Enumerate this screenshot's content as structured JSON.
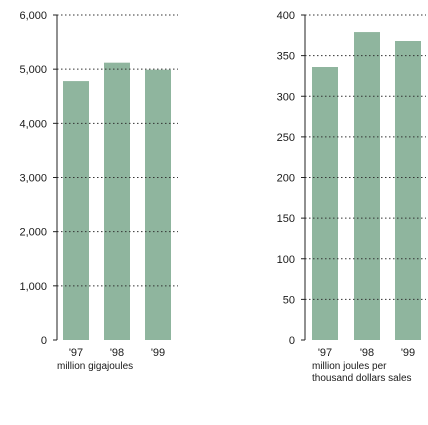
{
  "chart_data": [
    {
      "type": "bar",
      "categories": [
        "'97",
        "'98",
        "'99"
      ],
      "values": [
        4780,
        5120,
        4990
      ],
      "ylim": [
        0,
        6000
      ],
      "yticks": [
        "0",
        "1,000",
        "2,000",
        "3,000",
        "4,000",
        "5,000",
        "6,000"
      ],
      "grid": true,
      "caption": "million gigajoules"
    },
    {
      "type": "bar",
      "categories": [
        "'97",
        "'98",
        "'99"
      ],
      "values": [
        336,
        379,
        368
      ],
      "ylim": [
        0,
        400
      ],
      "yticks": [
        "0",
        "50",
        "100",
        "150",
        "200",
        "250",
        "300",
        "350",
        "400"
      ],
      "grid": true,
      "caption_lines": [
        "million joules per",
        "thousand dollars sales"
      ]
    }
  ],
  "colors": {
    "bar": "#8fb59e",
    "grid": "#333333",
    "axis": "#222222"
  }
}
